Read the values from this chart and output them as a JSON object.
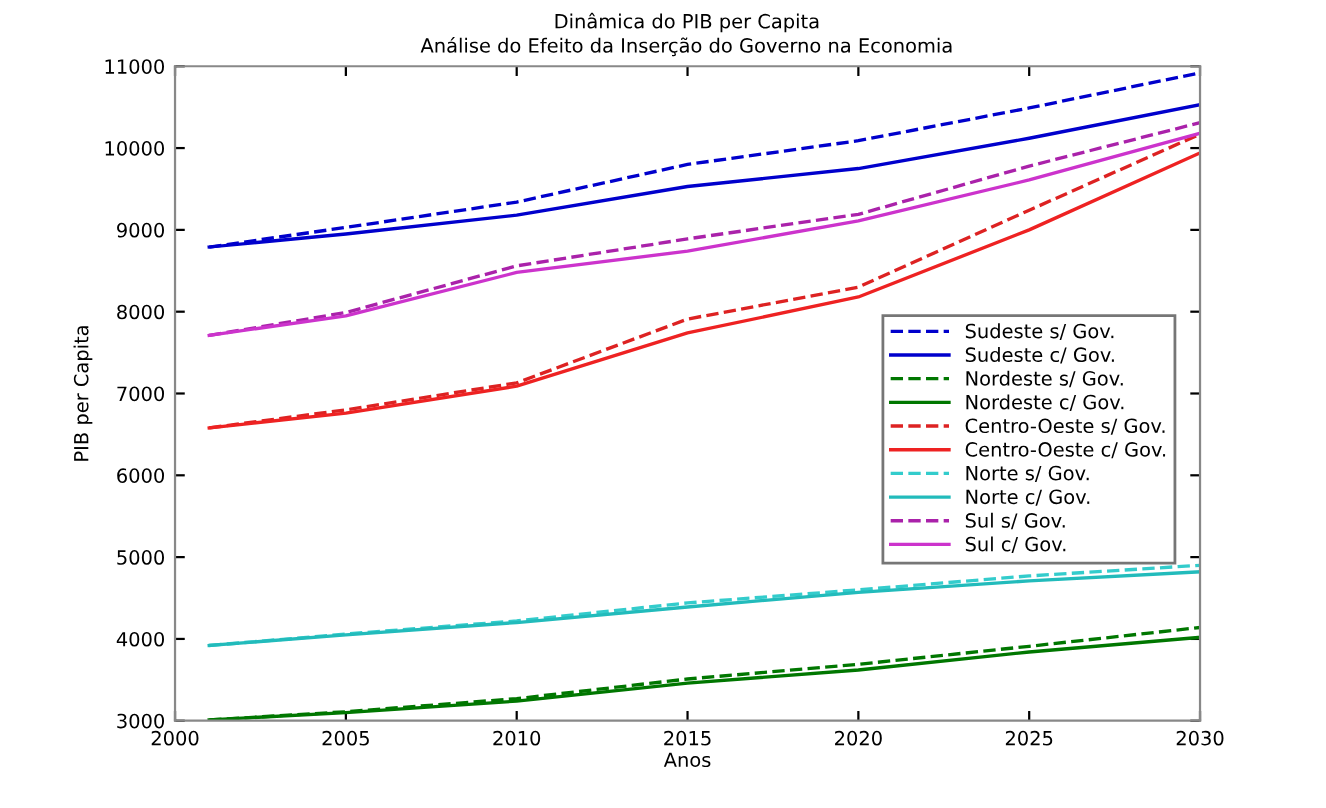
{
  "chart_data": {
    "type": "line",
    "title": "Dinâmica do PIB per Capita",
    "subtitle": "Análise do Efeito da Inserção do Governo na Economia",
    "xlabel": "Anos",
    "ylabel": "PIB per Capita",
    "x": [
      2001,
      2005,
      2010,
      2015,
      2020,
      2025,
      2030
    ],
    "xlim": [
      2000,
      2030
    ],
    "xticks": [
      2000,
      2005,
      2010,
      2015,
      2020,
      2025,
      2030
    ],
    "ylim": [
      3000,
      11000
    ],
    "yticks": [
      3000,
      4000,
      5000,
      6000,
      7000,
      8000,
      9000,
      10000,
      11000
    ],
    "grid": false,
    "legend": "center right",
    "marker": "none",
    "series": [
      {
        "name": "Sudeste s/ Gov.",
        "color": "#0000cc",
        "line_style": "dashed",
        "values": [
          8790,
          9030,
          9340,
          9800,
          10090,
          10490,
          10920
        ]
      },
      {
        "name": "Sudeste c/ Gov.",
        "color": "#0000cc",
        "line_style": "solid",
        "values": [
          8790,
          8950,
          9180,
          9530,
          9750,
          10120,
          10530
        ]
      },
      {
        "name": "Nordeste s/ Gov.",
        "color": "#007700",
        "line_style": "dashed",
        "values": [
          3010,
          3110,
          3270,
          3510,
          3690,
          3910,
          4140
        ]
      },
      {
        "name": "Nordeste c/ Gov.",
        "color": "#007700",
        "line_style": "solid",
        "values": [
          3010,
          3100,
          3240,
          3460,
          3620,
          3840,
          4020
        ]
      },
      {
        "name": "Centro-Oeste s/ Gov.",
        "color": "#dd2222",
        "line_style": "dashed",
        "values": [
          6580,
          6800,
          7130,
          7910,
          8300,
          9240,
          10170
        ]
      },
      {
        "name": "Centro-Oeste c/ Gov.",
        "color": "#ee2222",
        "line_style": "solid",
        "values": [
          6580,
          6760,
          7090,
          7740,
          8180,
          9000,
          9940
        ]
      },
      {
        "name": "Norte s/ Gov.",
        "color": "#33cccc",
        "line_style": "dashed",
        "values": [
          3920,
          4060,
          4220,
          4440,
          4600,
          4770,
          4900
        ]
      },
      {
        "name": "Norte c/ Gov.",
        "color": "#22bbbb",
        "line_style": "solid",
        "values": [
          3920,
          4050,
          4200,
          4390,
          4570,
          4710,
          4820
        ]
      },
      {
        "name": "Sul s/ Gov.",
        "color": "#aa22aa",
        "line_style": "dashed",
        "values": [
          7710,
          7990,
          8560,
          8890,
          9190,
          9780,
          10310
        ]
      },
      {
        "name": "Sul c/ Gov.",
        "color": "#cc33cc",
        "line_style": "solid",
        "values": [
          7710,
          7950,
          8480,
          8740,
          9110,
          9610,
          10180
        ]
      }
    ]
  }
}
